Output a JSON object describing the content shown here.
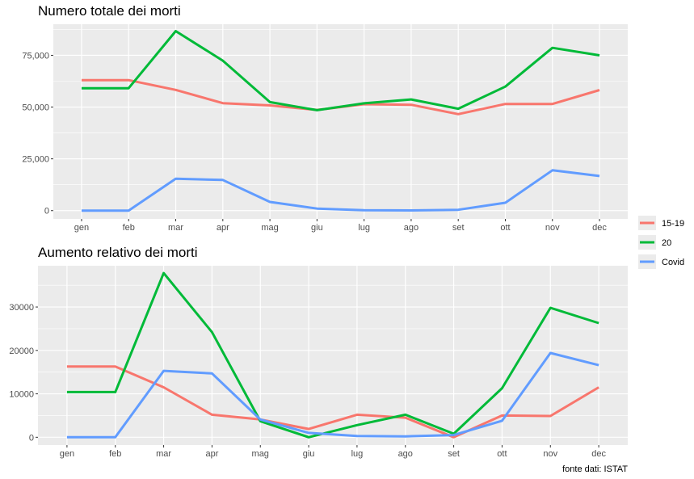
{
  "chart_data": [
    {
      "type": "line",
      "title": "Numero totale dei morti",
      "categories": [
        "gen",
        "feb",
        "mar",
        "apr",
        "mag",
        "giu",
        "lug",
        "ago",
        "set",
        "ott",
        "nov",
        "dec"
      ],
      "ylim": [
        -4000,
        90000
      ],
      "yticks": [
        0,
        25000,
        50000,
        75000
      ],
      "ytick_labels": [
        "0",
        "25,000",
        "50,000",
        "75,000"
      ],
      "grid": true,
      "series": [
        {
          "name": "15-19",
          "color": "#F8766D",
          "values": [
            63000,
            63000,
            58300,
            51900,
            50800,
            48600,
            51400,
            51100,
            46600,
            51500,
            51500,
            58200
          ]
        },
        {
          "name": "20",
          "color": "#00BA38",
          "values": [
            59100,
            59100,
            86700,
            72400,
            52400,
            48500,
            51800,
            53700,
            49200,
            59900,
            78600,
            75000
          ]
        },
        {
          "name": "Covid",
          "color": "#619CFF",
          "values": [
            0,
            0,
            15400,
            14800,
            4200,
            1000,
            200,
            100,
            400,
            3800,
            19500,
            16700
          ]
        }
      ]
    },
    {
      "type": "line",
      "title": "Aumento relativo dei morti",
      "categories": [
        "gen",
        "feb",
        "mar",
        "apr",
        "mag",
        "giu",
        "lug",
        "ago",
        "set",
        "ott",
        "nov",
        "dec"
      ],
      "ylim": [
        -1800,
        39500
      ],
      "yticks": [
        0,
        10000,
        20000,
        30000
      ],
      "ytick_labels": [
        "0",
        "10000",
        "20000",
        "30000"
      ],
      "grid": true,
      "series": [
        {
          "name": "15-19",
          "color": "#F8766D",
          "values": [
            16300,
            16300,
            11500,
            5200,
            4100,
            1900,
            5200,
            4500,
            0,
            5000,
            4900,
            11500
          ]
        },
        {
          "name": "20",
          "color": "#00BA38",
          "values": [
            10400,
            10400,
            37800,
            24200,
            3700,
            0,
            2800,
            5200,
            800,
            11300,
            29800,
            26300
          ]
        },
        {
          "name": "Covid",
          "color": "#619CFF",
          "values": [
            0,
            0,
            15300,
            14700,
            4100,
            1000,
            300,
            200,
            500,
            3800,
            19400,
            16600
          ]
        }
      ]
    }
  ],
  "legend": {
    "placement": "right",
    "entries": [
      "15-19",
      "20",
      "Covid"
    ]
  },
  "caption": "fonte dati: ISTAT"
}
